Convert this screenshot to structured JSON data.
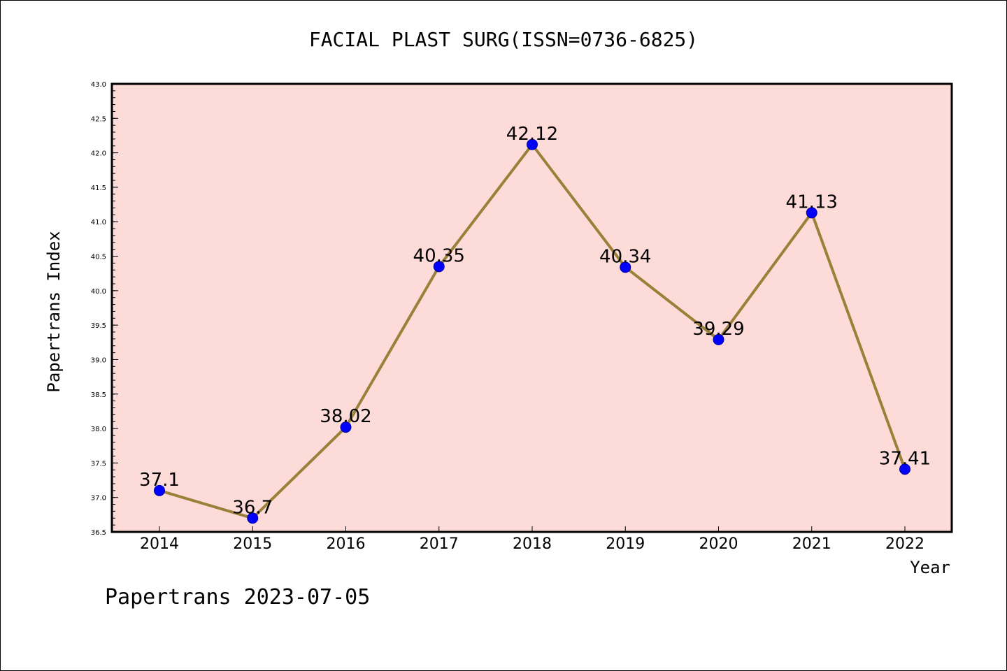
{
  "chart_data": {
    "type": "line",
    "title": "FACIAL PLAST SURG(ISSN=0736-6825)",
    "xlabel": "Year",
    "ylabel": "Papertrans Index",
    "categories": [
      "2014",
      "2015",
      "2016",
      "2017",
      "2018",
      "2019",
      "2020",
      "2021",
      "2022"
    ],
    "series": [
      {
        "name": "Papertrans Index",
        "values": [
          37.1,
          36.7,
          38.02,
          40.35,
          42.12,
          40.34,
          39.29,
          41.13,
          37.41
        ],
        "labels": [
          "37.1",
          "36.7",
          "38.02",
          "40.35",
          "42.12",
          "40.34",
          "39.29",
          "41.13",
          "37.41"
        ]
      }
    ],
    "ylim": [
      36.5,
      43.0
    ],
    "yticks": [
      "36.5",
      "37.0",
      "37.5",
      "38.0",
      "38.5",
      "39.0",
      "39.5",
      "40.0",
      "40.5",
      "41.0",
      "41.5",
      "42.0",
      "42.5",
      "43.0"
    ],
    "grid": false,
    "colors": {
      "plot_background": "#fddbd8",
      "line": "#9a8039",
      "marker": "#0000ff",
      "marker_edge": "#0000a0"
    }
  },
  "footer": {
    "text": "Papertrans 2023-07-05"
  }
}
